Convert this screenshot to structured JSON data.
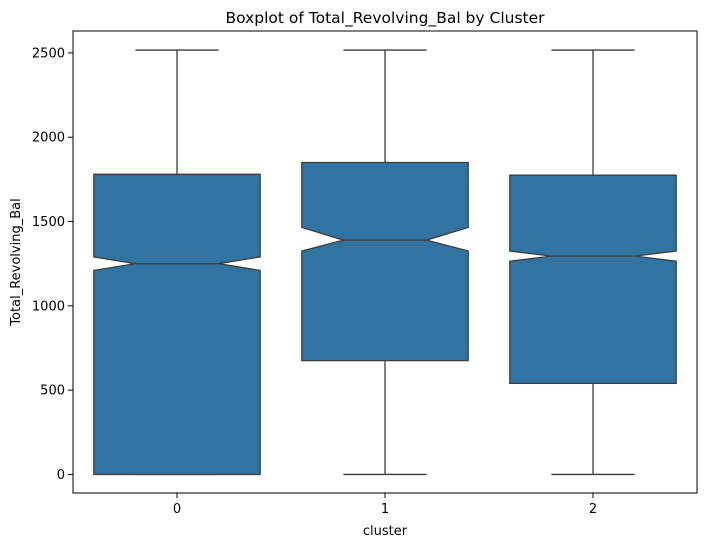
{
  "chart_data": {
    "type": "boxplot",
    "title": "Boxplot of Total_Revolving_Bal by Cluster",
    "xlabel": "cluster",
    "ylabel": "Total_Revolving_Bal",
    "categories": [
      "0",
      "1",
      "2"
    ],
    "ylim": [
      -110,
      2630
    ],
    "yticks": [
      0,
      500,
      1000,
      1500,
      2000,
      2500
    ],
    "notched": true,
    "grid": false,
    "box_color": "#3274a1",
    "line_color": "#3d3d3d",
    "boxes": [
      {
        "category": "0",
        "whisker_low": 0,
        "q1": 0,
        "notch_low": 1210,
        "median": 1250,
        "notch_high": 1290,
        "q3": 1780,
        "whisker_high": 2517
      },
      {
        "category": "1",
        "whisker_low": 0,
        "q1": 675,
        "notch_low": 1325,
        "median": 1390,
        "notch_high": 1465,
        "q3": 1850,
        "whisker_high": 2517
      },
      {
        "category": "2",
        "whisker_low": 0,
        "q1": 540,
        "notch_low": 1265,
        "median": 1295,
        "notch_high": 1325,
        "q3": 1775,
        "whisker_high": 2517
      }
    ]
  }
}
